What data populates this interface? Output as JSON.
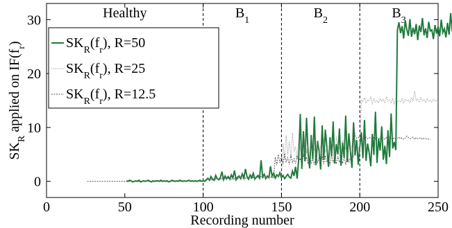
{
  "chart_data": {
    "type": "line",
    "xlabel": "Recording number",
    "ylabel": "SK_R applied on IF(f_r)",
    "xlim": [
      0,
      250
    ],
    "ylim": [
      -3,
      33
    ],
    "xticks": [
      0,
      50,
      100,
      150,
      200,
      250
    ],
    "yticks": [
      0,
      10,
      20,
      30
    ],
    "grid": false,
    "legend_position": "top-left",
    "regions": [
      {
        "label": "Healthy",
        "sub": "",
        "x_start": 0,
        "x_end": 100
      },
      {
        "label": "B",
        "sub": "1",
        "x_start": 100,
        "x_end": 150
      },
      {
        "label": "B",
        "sub": "2",
        "x_start": 150,
        "x_end": 200
      },
      {
        "label": "B",
        "sub": "3",
        "x_start": 200,
        "x_end": 250
      }
    ],
    "region_boundaries": [
      0,
      100,
      150,
      200,
      250
    ],
    "series": [
      {
        "name": "SK_R(f_r), R=50",
        "legend_text": "SK",
        "legend_sub1": "R",
        "legend_mid": "(f",
        "legend_sub2": "r",
        "legend_end": "), R=50",
        "color": "#1f7a3c",
        "style": "solid",
        "x_start": 51,
        "values": [
          0.1,
          0.0,
          0.2,
          0.1,
          -0.1,
          0.0,
          0.1,
          0.0,
          0.2,
          -0.1,
          0.0,
          0.1,
          0.0,
          0.1,
          0.2,
          0.0,
          -0.1,
          0.1,
          0.0,
          0.1,
          0.1,
          0.0,
          0.2,
          0.0,
          0.1,
          0.0,
          0.1,
          -0.1,
          0.0,
          0.2,
          0.1,
          0.0,
          0.1,
          0.0,
          0.2,
          0.1,
          0.0,
          0.1,
          0.0,
          0.1,
          0.2,
          0.0,
          0.1,
          0.0,
          0.1,
          0.0,
          0.1,
          0.2,
          0.0,
          0.1,
          0.0,
          0.3,
          0.6,
          0.2,
          0.9,
          0.4,
          0.2,
          1.1,
          0.5,
          0.3,
          0.7,
          1.8,
          0.3,
          1.0,
          0.5,
          0.9,
          0.4,
          1.2,
          0.6,
          2.0,
          0.3,
          0.8,
          1.0,
          0.5,
          1.4,
          0.6,
          2.3,
          0.9,
          0.4,
          1.2,
          0.7,
          1.5,
          0.4,
          0.8,
          1.1,
          0.6,
          3.9,
          0.8,
          1.3,
          0.5,
          1.0,
          0.7,
          2.8,
          1.0,
          1.5,
          0.6,
          1.2,
          0.9,
          1.6,
          0.7,
          1.1,
          0.5,
          0.9,
          1.3,
          0.8,
          0.6,
          1.9,
          1.0,
          2.7,
          0.5,
          4.2,
          12.5,
          2.3,
          9.3,
          3.7,
          11.8,
          5.2,
          2.4,
          8.6,
          4.1,
          12.0,
          3.0,
          7.5,
          5.6,
          2.2,
          10.4,
          4.0,
          9.6,
          6.3,
          2.7,
          8.2,
          4.6,
          11.1,
          3.3,
          6.9,
          5.0,
          9.8,
          2.9,
          7.2,
          4.4,
          12.2,
          3.6,
          8.9,
          5.5,
          2.5,
          10.9,
          4.8,
          7.7,
          3.1,
          6.4,
          9.1,
          4.3,
          11.4,
          3.8,
          7.0,
          5.3,
          2.8,
          8.8,
          4.9,
          12.9,
          3.4,
          7.9,
          5.7,
          10.2,
          4.0,
          6.6,
          3.2,
          9.5,
          4.5,
          12.6,
          6.1,
          7.3,
          5.8,
          28.0,
          29.5,
          27.5,
          28.8,
          26.5,
          29.9,
          28.2,
          27.0,
          30.1,
          26.8,
          28.5,
          27.3,
          29.2,
          26.2,
          28.9,
          27.7,
          30.3,
          27.1,
          28.4,
          26.6,
          29.6,
          27.9,
          28.1,
          26.4,
          29.0,
          27.4,
          28.7,
          26.9,
          30.0,
          27.6,
          28.3,
          26.7,
          29.4,
          27.2,
          31.2,
          27.8,
          28.6,
          26.3,
          29.8,
          27.5,
          28.0,
          26.1,
          29.1,
          27.3,
          28.8,
          26.8,
          28.2,
          27.0,
          27.6,
          27.2
        ]
      },
      {
        "name": "SK_R(f_r), R=25",
        "legend_text": "SK",
        "legend_sub1": "R",
        "legend_mid": "(f",
        "legend_sub2": "r",
        "legend_end": "), R=25",
        "color": "#8a8a8a",
        "style": "dotted",
        "x_start": 101,
        "values": [
          0.3,
          0.2,
          0.5,
          0.3,
          0.4,
          0.2,
          0.6,
          0.3,
          0.5,
          0.4,
          0.3,
          0.7,
          0.4,
          0.5,
          0.3,
          0.6,
          0.4,
          0.8,
          0.5,
          0.3,
          0.6,
          0.4,
          1.0,
          0.5,
          0.7,
          0.4,
          0.6,
          0.5,
          0.9,
          0.6,
          0.5,
          0.7,
          0.4,
          0.8,
          0.6,
          0.5,
          0.9,
          0.7,
          0.6,
          0.8,
          0.5,
          1.0,
          0.7,
          0.6,
          0.9,
          0.8,
          0.7,
          1.1,
          0.8,
          0.9,
          7.0,
          4.0,
          8.5,
          5.0,
          7.5,
          4.5,
          9.0,
          5.5,
          6.5,
          4.2,
          8.0,
          5.8,
          6.2,
          4.6,
          7.8,
          5.2,
          6.8,
          4.4,
          8.2,
          5.6,
          6.0,
          4.8,
          7.4,
          5.0,
          6.6,
          4.3,
          7.9,
          5.4,
          6.3,
          4.7,
          7.2,
          5.1,
          6.9,
          4.5,
          8.4,
          5.7,
          6.1,
          4.9,
          7.6,
          5.3,
          6.4,
          4.6,
          7.1,
          5.5,
          6.7,
          4.4,
          7.7,
          5.9,
          6.2,
          5.0,
          15.2,
          14.8,
          15.5,
          14.5,
          15.1,
          14.9,
          15.6,
          14.4,
          15.3,
          14.7,
          15.0,
          14.6,
          15.4,
          14.8,
          15.2,
          14.5,
          15.7,
          14.9,
          15.1,
          14.6,
          15.3,
          14.4,
          15.5,
          14.8,
          15.0,
          14.7,
          15.4,
          14.5,
          15.2,
          14.9,
          15.1,
          14.6,
          15.6,
          14.8,
          16.8,
          15.0,
          15.3,
          14.7,
          15.5,
          14.9,
          15.2,
          14.6,
          15.4,
          14.8,
          15.1,
          14.7,
          15.3,
          14.9,
          15.0,
          14.6
        ]
      },
      {
        "name": "SK_R(f_r), R=12.5",
        "legend_text": "SK",
        "legend_sub1": "R",
        "legend_mid": "(f",
        "legend_sub2": "r",
        "legend_end": "), R=12.5",
        "color": "#555555",
        "style": "dashed",
        "x_start": 26,
        "values": [
          0.0,
          0.0,
          0.0,
          0.0,
          0.0,
          0.0,
          0.0,
          0.0,
          0.0,
          0.0,
          0.0,
          0.0,
          0.0,
          0.0,
          0.0,
          0.0,
          0.0,
          0.0,
          0.0,
          0.0,
          0.0,
          0.0,
          0.0,
          0.0,
          0.0,
          0.0,
          0.0,
          0.0,
          0.0,
          0.0,
          0.0,
          0.0,
          0.0,
          0.0,
          0.0,
          0.0,
          0.0,
          0.0,
          0.0,
          0.0,
          0.0,
          0.0,
          0.0,
          0.0,
          0.0,
          0.0,
          0.0,
          0.0,
          0.0,
          0.0,
          0.0,
          0.0,
          0.0,
          0.0,
          0.0,
          0.0,
          0.0,
          0.0,
          0.0,
          0.0,
          0.0,
          0.0,
          0.0,
          0.0,
          0.0,
          0.0,
          0.0,
          0.0,
          0.0,
          0.0,
          0.0,
          0.0,
          0.0,
          0.0,
          0.0,
          0.1,
          0.2,
          0.3,
          0.2,
          0.3,
          0.4,
          0.3,
          0.5,
          0.4,
          0.3,
          0.5,
          0.4,
          0.6,
          0.5,
          0.4,
          0.6,
          0.5,
          0.4,
          0.7,
          0.5,
          0.6,
          0.4,
          0.7,
          0.5,
          0.6,
          0.7,
          0.5,
          0.8,
          0.6,
          0.7,
          0.5,
          0.8,
          0.6,
          0.7,
          0.8,
          0.6,
          0.9,
          0.7,
          0.8,
          0.6,
          0.9,
          0.7,
          0.8,
          0.9,
          0.7,
          4.5,
          3.0,
          5.0,
          3.4,
          4.6,
          3.2,
          5.2,
          3.6,
          4.4,
          3.1,
          4.9,
          3.5,
          4.2,
          3.3,
          4.8,
          3.7,
          4.3,
          3.0,
          5.1,
          3.6,
          4.5,
          3.2,
          4.7,
          3.4,
          4.1,
          3.1,
          4.9,
          3.5,
          4.4,
          3.3,
          4.6,
          3.2,
          4.8,
          3.6,
          4.3,
          3.0,
          5.0,
          3.4,
          4.5,
          3.2,
          4.7,
          3.5,
          4.2,
          3.3,
          4.6,
          3.1,
          4.9,
          3.6,
          4.4,
          3.8,
          11.0,
          8.5,
          8.0,
          8.2,
          7.9,
          8.1,
          7.8,
          8.0,
          8.2,
          7.9,
          8.1,
          8.0,
          7.8,
          8.2,
          7.9,
          8.1,
          8.0,
          7.9,
          8.3,
          8.0,
          7.8,
          8.1,
          7.9,
          8.2,
          8.0,
          7.8,
          8.1,
          7.9,
          8.0,
          8.2,
          7.9,
          8.1,
          7.8,
          8.0,
          8.4,
          8.1,
          7.9,
          8.0,
          8.2,
          7.8,
          8.1,
          7.9,
          8.0,
          8.1,
          7.8,
          8.0,
          7.9,
          7.8,
          7.9,
          7.8
        ]
      }
    ]
  }
}
